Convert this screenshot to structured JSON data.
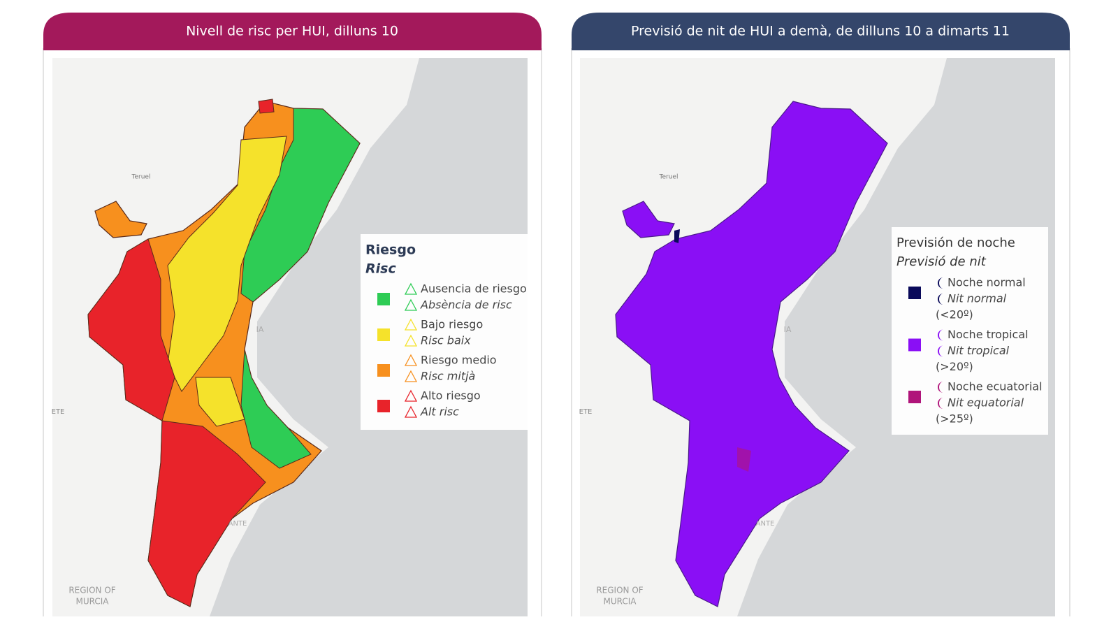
{
  "panels": [
    {
      "title": "Nivell de risc per HUI, dilluns 10",
      "header_color": "#a3195b",
      "map_labels": [
        "Teruel",
        "REGION OF",
        "MURCIA",
        "ETE",
        "IA",
        "ANTE"
      ],
      "legend": {
        "title": "Riesgo",
        "subtitle": "Risc",
        "items": [
          {
            "label": "Ausencia de riesgo",
            "label_va": "Absència de risc",
            "color": "#2ecc55"
          },
          {
            "label": "Bajo riesgo",
            "label_va": "Risc baix",
            "color": "#f5e22b"
          },
          {
            "label": "Riesgo medio",
            "label_va": "Risc mitjà",
            "color": "#f7901e"
          },
          {
            "label": "Alto riesgo",
            "label_va": "Alt risc",
            "color": "#e8232a"
          }
        ]
      }
    },
    {
      "title": "Previsió de nit de HUI a demà, de dilluns 10 a dimarts 11",
      "header_color": "#34466b",
      "map_labels": [
        "Teruel",
        "REGION OF",
        "MURCIA",
        "ETE",
        "IA",
        "ANTE"
      ],
      "legend": {
        "title": "Previsión de noche",
        "subtitle": "Previsió de nit",
        "items": [
          {
            "label": "Noche normal",
            "label_va": "Nit normal",
            "range": "(<20º)",
            "color": "#0a0a5a"
          },
          {
            "label": "Noche tropical",
            "label_va": "Nit tropical",
            "range": "(>20º)",
            "color": "#8a0ff5"
          },
          {
            "label": "Noche ecuatorial",
            "label_va": "Nit equatorial",
            "range": "(>25º)",
            "color": "#b0147a"
          }
        ]
      }
    }
  ]
}
